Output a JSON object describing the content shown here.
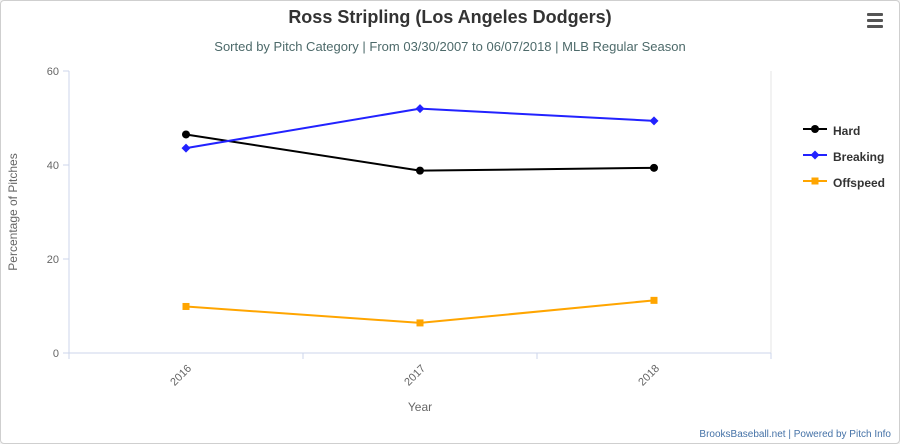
{
  "header": {
    "title": "Ross Stripling (Los Angeles Dodgers)",
    "subtitle": "Sorted by Pitch Category | From 03/30/2007 to 06/07/2018 | MLB Regular Season"
  },
  "chart_data": {
    "type": "line",
    "categories": [
      "2016",
      "2017",
      "2018"
    ],
    "series": [
      {
        "name": "Hard",
        "color": "#000000",
        "marker": "circle",
        "values": [
          46.5,
          38.8,
          39.4
        ]
      },
      {
        "name": "Breaking",
        "color": "#2222ff",
        "marker": "diamond",
        "values": [
          43.6,
          52.0,
          49.4
        ]
      },
      {
        "name": "Offspeed",
        "color": "#ffa500",
        "marker": "square",
        "values": [
          9.9,
          6.4,
          11.2
        ]
      }
    ],
    "xlabel": "Year",
    "ylabel": "Percentage of Pitches",
    "ylim": [
      0,
      60
    ],
    "yticks": [
      0,
      20,
      40,
      60
    ],
    "legend_position": "right",
    "grid": false
  },
  "credits": "BrooksBaseball.net | Powered by Pitch Info",
  "icons": {
    "menu": "hamburger-menu-icon"
  }
}
